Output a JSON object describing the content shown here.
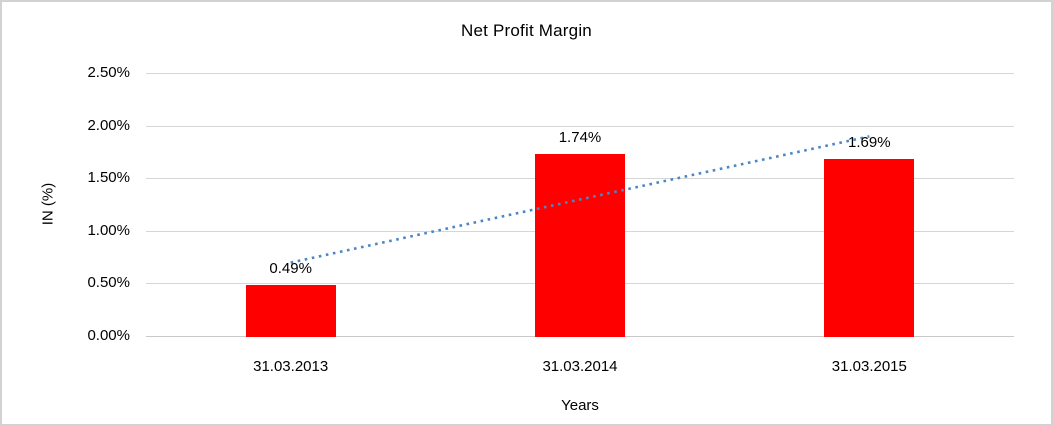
{
  "chart_data": {
    "type": "bar",
    "title": "Net Profit Margin",
    "xlabel": "Years",
    "ylabel": "IN (%)",
    "categories": [
      "31.03.2013",
      "31.03.2014",
      "31.03.2015"
    ],
    "values": [
      0.49,
      1.74,
      1.69
    ],
    "data_labels": [
      "0.49%",
      "1.74%",
      "1.69%"
    ],
    "ylim": [
      0,
      2.5
    ],
    "yticks": [
      {
        "value": 0.0,
        "label": "0.00%"
      },
      {
        "value": 0.5,
        "label": "0.50%"
      },
      {
        "value": 1.0,
        "label": "1.00%"
      },
      {
        "value": 1.5,
        "label": "1.50%"
      },
      {
        "value": 2.0,
        "label": "2.00%"
      },
      {
        "value": 2.5,
        "label": "2.50%"
      }
    ],
    "grid": true,
    "legend": false,
    "colors": {
      "bar": "#ff0000",
      "gridline": "#d6d6d6",
      "trendline": "#4a86c8",
      "figure_border": "#d2d2d2",
      "text": "#000000"
    },
    "trendline": {
      "type": "linear",
      "style": "dotted",
      "start_value": 0.707,
      "end_value": 1.907
    }
  }
}
